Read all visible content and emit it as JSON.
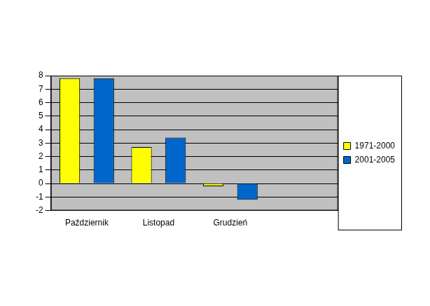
{
  "chart_data": {
    "type": "bar",
    "categories": [
      "Październik",
      "Listopad",
      "Grudzień",
      null
    ],
    "series": [
      {
        "name": "1971-2000",
        "color": "#ffff00",
        "values": [
          7.8,
          2.7,
          -0.2,
          null
        ]
      },
      {
        "name": "2001-2005",
        "color": "#0066cc",
        "values": [
          7.8,
          3.4,
          -1.2,
          null
        ]
      }
    ],
    "ylim": [
      -2,
      8
    ],
    "yticks": [
      -2,
      -1,
      0,
      1,
      2,
      3,
      4,
      5,
      6,
      7,
      8
    ],
    "grid": true,
    "legend": "right"
  }
}
